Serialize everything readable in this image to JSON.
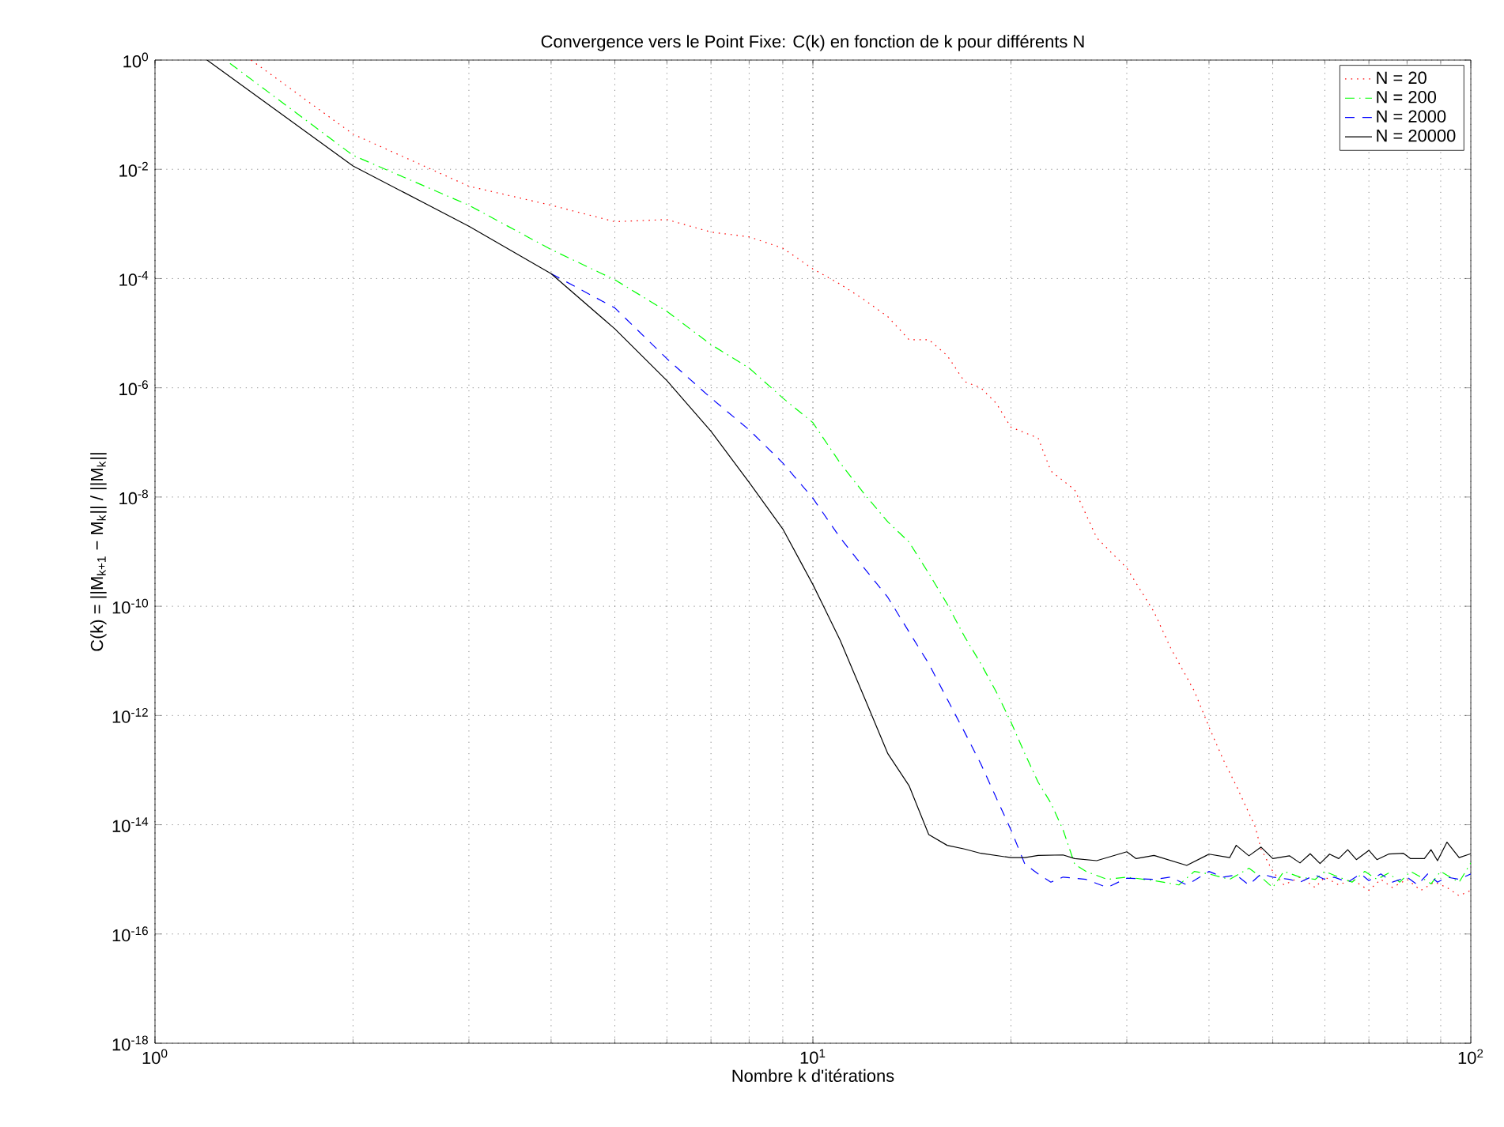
{
  "chart_data": {
    "type": "line",
    "title": "Convergence vers le Point Fixe: C(k) en fonction de k pour différents N",
    "xlabel": "Nombre k d'itérations",
    "ylabel": "C(k) = ||M$_{k+1}$ − M$_{k}$|| / ||M$_{k}$||",
    "log": "xy",
    "grid": true,
    "legend": "top right",
    "xlim": [
      1,
      100
    ],
    "ylim": [
      1e-18,
      1
    ],
    "xticks": [
      {
        "value": 1,
        "label": "10$^{0}$"
      },
      {
        "value": 10,
        "label": "10$^{1}$"
      },
      {
        "value": 100,
        "label": "10$^{2}$"
      }
    ],
    "yticks": [
      {
        "value": 1e-18,
        "label": "10$^{-18}$"
      },
      {
        "value": 1e-16,
        "label": "10$^{-16}$"
      },
      {
        "value": 1e-14,
        "label": "10$^{-14}$"
      },
      {
        "value": 1e-12,
        "label": "10$^{-12}$"
      },
      {
        "value": 1e-10,
        "label": "10$^{-10}$"
      },
      {
        "value": 1e-08,
        "label": "10$^{-8}$"
      },
      {
        "value": 1e-06,
        "label": "10$^{-6}$"
      },
      {
        "value": 0.0001,
        "label": "10$^{-4}$"
      },
      {
        "value": 0.01,
        "label": "10$^{-2}$"
      },
      {
        "value": 1,
        "label": "10$^{0}$"
      }
    ],
    "series": [
      {
        "name": "N = 20",
        "color": "#ff0000",
        "line_style": "dotted",
        "x": [
          1.4,
          2,
          3,
          4,
          5,
          6,
          7,
          8,
          9,
          10,
          11,
          12,
          13,
          14,
          15,
          16,
          17,
          18,
          19,
          20,
          22,
          23,
          25,
          27,
          30,
          33,
          35,
          38,
          40,
          42,
          44,
          47,
          48,
          50,
          52,
          55,
          58,
          60,
          63,
          66,
          70,
          73,
          76,
          80,
          84,
          88,
          92,
          96,
          100
        ],
        "values": [
          1.0,
          0.044,
          0.0049,
          0.0022,
          0.0011,
          0.0012,
          0.00071,
          0.00058,
          0.00036,
          0.00015,
          7.9e-05,
          4e-05,
          2e-05,
          7.6e-06,
          7.6e-06,
          3.9e-06,
          1.3e-06,
          1e-06,
          5.2e-07,
          1.9e-07,
          1.2e-07,
          3e-08,
          1.35e-08,
          1.8e-09,
          5e-10,
          7.9e-11,
          1.7e-11,
          2.8e-12,
          6.2e-13,
          1.6e-13,
          5.2e-14,
          9.3e-15,
          3.6e-15,
          1.4e-15,
          7.9e-16,
          1.1e-15,
          7.1e-16,
          1.1e-15,
          7.9e-16,
          1e-15,
          6.3e-16,
          1e-15,
          7.1e-16,
          1e-15,
          6.3e-16,
          8.9e-16,
          7.1e-16,
          5e-16,
          6.3e-16
        ]
      },
      {
        "name": "N = 200",
        "color": "#00ff00",
        "line_style": "dashdot",
        "x": [
          1.3,
          2,
          3,
          4,
          5,
          6,
          7,
          8,
          9,
          10,
          11,
          12,
          13,
          14,
          15,
          16,
          17,
          18,
          19,
          20,
          21,
          22,
          23,
          24,
          25,
          26,
          28,
          30,
          33,
          36,
          38,
          40,
          43,
          46,
          48,
          50,
          52,
          55,
          58,
          60,
          63,
          66,
          69,
          72,
          75,
          78,
          81,
          84,
          87,
          90,
          93,
          96,
          100
        ],
        "values": [
          0.87,
          0.018,
          0.0022,
          0.00034,
          9.5e-05,
          2.5e-05,
          6.2e-06,
          2.3e-06,
          6.5e-07,
          2.3e-07,
          4.2e-08,
          1.1e-08,
          3.5e-09,
          1.5e-09,
          4e-10,
          1.1e-10,
          2.8e-11,
          8.9e-12,
          2.7e-12,
          7.6e-13,
          2e-13,
          6e-14,
          2.5e-14,
          8.1e-15,
          1.9e-15,
          1.4e-15,
          1e-15,
          1.1e-15,
          9.5e-16,
          7.9e-16,
          1.4e-15,
          1.26e-15,
          1e-15,
          1.6e-15,
          1.1e-15,
          7.1e-16,
          1.4e-15,
          1.1e-15,
          1e-15,
          1.4e-15,
          1.1e-15,
          8.9e-16,
          1.4e-15,
          1e-15,
          1.3e-15,
          8.9e-16,
          1.4e-15,
          1.1e-15,
          8.3e-16,
          1.4e-15,
          1.1e-15,
          8.9e-16,
          2e-15
        ]
      },
      {
        "name": "N = 2000",
        "color": "#0000ff",
        "line_style": "dashed",
        "x": [
          4,
          5,
          6,
          7,
          8,
          9,
          10,
          11,
          12,
          13,
          14,
          15,
          16,
          17,
          18,
          19,
          20,
          21,
          22,
          23,
          24,
          26,
          28,
          30,
          33,
          35,
          37,
          40,
          42,
          44,
          46,
          48,
          50,
          53,
          55,
          58,
          60,
          62,
          65,
          68,
          70,
          73,
          76,
          80,
          83,
          86,
          89,
          92,
          96,
          100
        ],
        "values": [
          0.000123,
          2.9e-05,
          3.4e-06,
          6.5e-07,
          1.7e-07,
          4.2e-08,
          9.5e-09,
          1.8e-09,
          4.8e-10,
          1.45e-10,
          3.4e-11,
          8.9e-12,
          2e-12,
          5e-13,
          1.3e-13,
          3.1e-14,
          8.1e-15,
          1.9e-15,
          1.26e-15,
          8.9e-16,
          1.1e-15,
          1e-15,
          7.1e-16,
          1.05e-15,
          1e-15,
          1.1e-15,
          7.9e-16,
          1.4e-15,
          1.1e-15,
          1.2e-15,
          7.9e-16,
          1.26e-15,
          1.1e-15,
          1e-15,
          8.9e-16,
          1.2e-15,
          1e-15,
          1.1e-15,
          8.9e-16,
          1.26e-15,
          9.5e-16,
          1.26e-15,
          8.9e-16,
          1.1e-15,
          7.9e-16,
          1.26e-15,
          8.9e-16,
          1.1e-15,
          1e-15,
          1.26e-15
        ]
      },
      {
        "name": "N = 20000",
        "color": "#000000",
        "line_style": "solid",
        "x": [
          1.2,
          2,
          3,
          4,
          5,
          6,
          7,
          8,
          9,
          10,
          11,
          12,
          13,
          14,
          15,
          16,
          17,
          18,
          20,
          21,
          22,
          24,
          25,
          27,
          30,
          31,
          33,
          37,
          40,
          43,
          44,
          46,
          48,
          50,
          53,
          55,
          57,
          59,
          61,
          63,
          65,
          67,
          70,
          72,
          75,
          79,
          81,
          85,
          87,
          89,
          92,
          96,
          100
        ],
        "values": [
          1.0,
          0.0115,
          0.00091,
          0.000123,
          1.2e-05,
          1.35e-06,
          1.6e-07,
          1.86e-08,
          2.6e-09,
          2.5e-10,
          2.4e-11,
          2e-12,
          2e-13,
          5.2e-14,
          6.6e-15,
          4.2e-15,
          3.6e-15,
          3e-15,
          2.5e-15,
          2.5e-15,
          2.75e-15,
          2.8e-15,
          2.4e-15,
          2.2e-15,
          3.2e-15,
          2.4e-15,
          2.75e-15,
          1.8e-15,
          2.9e-15,
          2.5e-15,
          4.2e-15,
          2.7e-15,
          3.9e-15,
          2.4e-15,
          2.7e-15,
          2e-15,
          2.95e-15,
          1.95e-15,
          2.9e-15,
          2.4e-15,
          3.5e-15,
          2.3e-15,
          3.4e-15,
          2.3e-15,
          2.9e-15,
          3e-15,
          2.4e-15,
          2.4e-15,
          3.5e-15,
          2.2e-15,
          4.8e-15,
          2.5e-15,
          2.95e-15
        ]
      }
    ]
  }
}
